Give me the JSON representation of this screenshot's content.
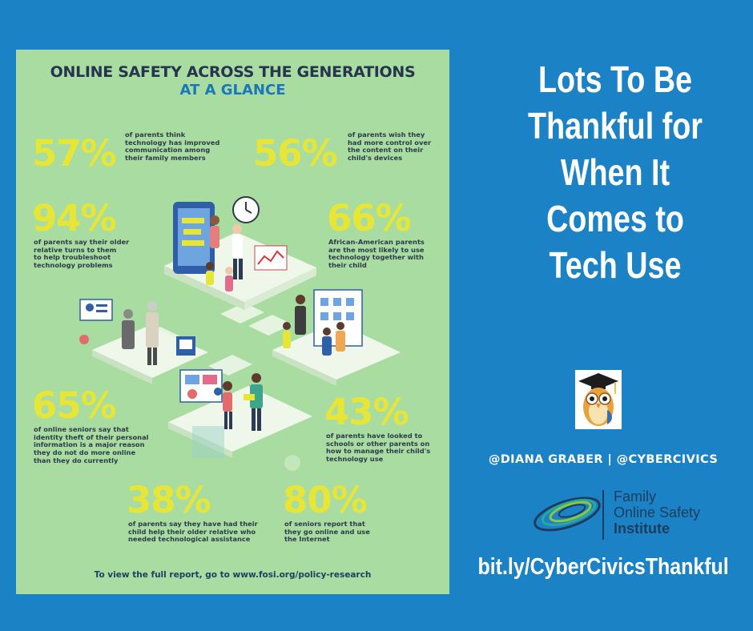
{
  "infographic": {
    "title": "ONLINE SAFETY ACROSS THE GENERATIONS",
    "subtitle": "AT A GLANCE",
    "stats": [
      {
        "value": "57%",
        "text": [
          "of parents think",
          "technology has improved",
          "communication among",
          "their family members"
        ]
      },
      {
        "value": "56%",
        "text": [
          "of parents wish they",
          "had more control over",
          "the content on their",
          "child's devices"
        ]
      },
      {
        "value": "94%",
        "text": [
          "of parents say their older",
          "relative turns to them",
          "to help troubleshoot",
          "technology problems"
        ]
      },
      {
        "value": "66%",
        "text": [
          "African-American parents",
          "are the most likely to use",
          "technology together with",
          "their child"
        ]
      },
      {
        "value": "65%",
        "text": [
          "of online seniors say that",
          "identity theft of their personal",
          "information is a major reason",
          "they do not do more online",
          "than they do currently"
        ]
      },
      {
        "value": "43%",
        "text": [
          "of parents have looked to",
          "schools or other parents on",
          "how to manage their child's",
          "technology use"
        ]
      },
      {
        "value": "38%",
        "text": [
          "of parents say they have had their",
          "child help their older relative who",
          "needed technological assistance"
        ]
      },
      {
        "value": "80%",
        "text": [
          "of seniors report that",
          "they go online and use",
          "the Internet"
        ]
      }
    ],
    "footer": "To view the full report, go to www.fosi.org/policy-research"
  },
  "headline": [
    "Lots To Be",
    "Thankful for",
    "When It",
    "Comes to",
    "Tech Use"
  ],
  "handle": "@DIANA GRABER | @CYBERCIVICS",
  "fosi": {
    "line1": "Family",
    "line2": "Online Safety",
    "line3": "Institute"
  },
  "link": "bit.ly/CyberCivicsThankful",
  "colors": {
    "background": "#1b83c5",
    "panel": "#a9dca1",
    "stat_yellow": "#e7e637",
    "title_navy": "#26344f",
    "subtitle_blue": "#1c77b9"
  }
}
